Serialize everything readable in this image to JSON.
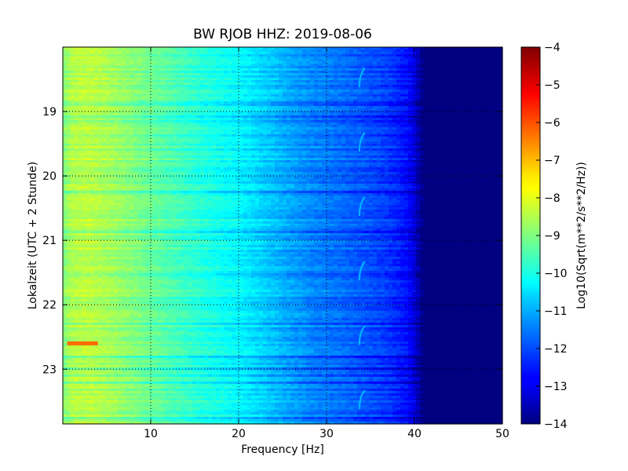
{
  "chart_data": {
    "type": "heatmap",
    "title": "BW RJOB HHZ: 2019-08-06",
    "xlabel": "Frequency [Hz]",
    "ylabel": "Lokalzeit (UTC + 2 Stunde)",
    "colorbar_label": "Log10(Sqrt(m**2/s**2/Hz))",
    "xlim": [
      0,
      50
    ],
    "ylim": [
      18.0,
      23.85
    ],
    "y_inverted": true,
    "x_ticks": [
      10,
      20,
      30,
      40,
      50
    ],
    "y_ticks": [
      19,
      20,
      21,
      22,
      23
    ],
    "colorbar_range": [
      -14,
      -4
    ],
    "colorbar_ticks": [
      -4,
      -5,
      -6,
      -7,
      -8,
      -9,
      -10,
      -11,
      -12,
      -13,
      -14
    ],
    "colormap": "jet",
    "grid": true,
    "profile": {
      "frequency": [
        0,
        1,
        3,
        6,
        10,
        15,
        20,
        25,
        28,
        33,
        37,
        39,
        40,
        40.5,
        41,
        50
      ],
      "level": [
        -9.0,
        -8.5,
        -8.4,
        -8.7,
        -9.2,
        -9.8,
        -10.3,
        -11.0,
        -11.4,
        -11.8,
        -12.2,
        -12.6,
        -13.0,
        -13.6,
        -14.0,
        -14.0
      ]
    },
    "features": [
      {
        "label": "transient at 22:35",
        "time": 22.6,
        "frequency": [
          0.5,
          4
        ],
        "level": -6.3
      },
      {
        "label": "recurring tone near 34 Hz",
        "frequency": 34.0,
        "level": -11.0
      }
    ]
  }
}
